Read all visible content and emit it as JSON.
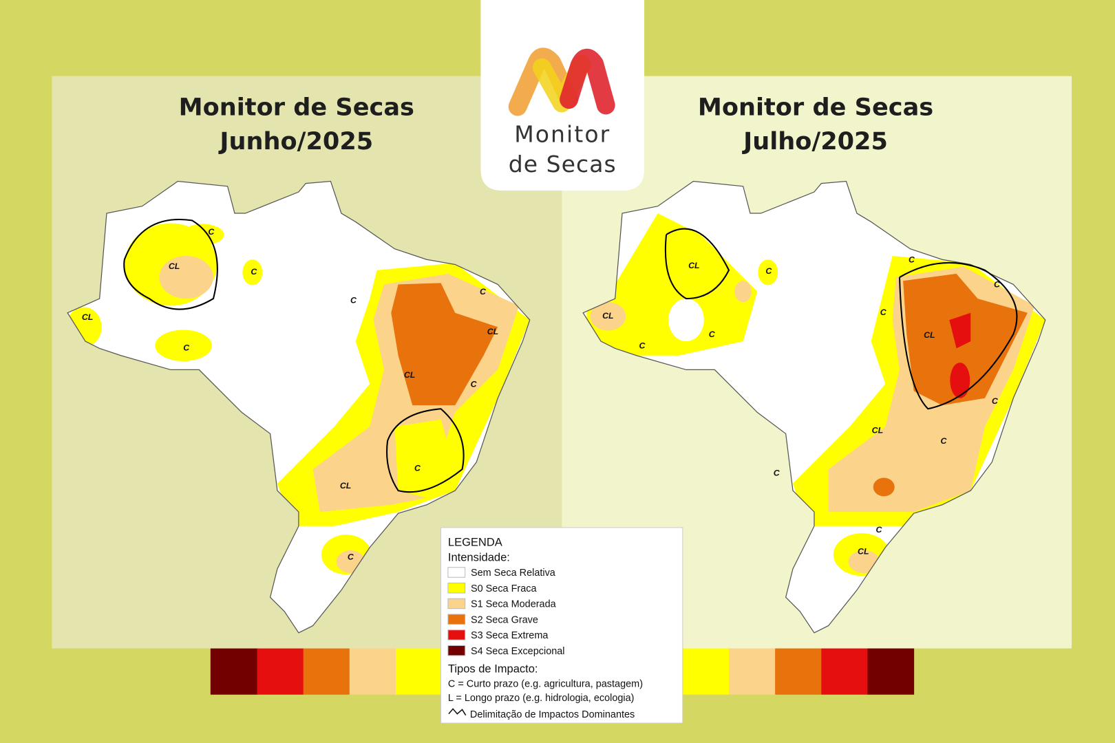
{
  "logo": {
    "line1": "Monitor",
    "line2": "de Secas"
  },
  "panels": [
    {
      "title_line1": "Monitor de Secas",
      "title_line2": "Junho/2025",
      "labels": [
        "CL",
        "C",
        "C",
        "CL",
        "C",
        "C",
        "C",
        "CL",
        "CL",
        "C",
        "C",
        "CL",
        "C"
      ]
    },
    {
      "title_line1": "Monitor de Secas",
      "title_line2": "Julho/2025",
      "labels": [
        "CL",
        "C",
        "CL",
        "C",
        "C",
        "C",
        "C",
        "C",
        "CL",
        "C",
        "CL",
        "C",
        "C",
        "C",
        "CL"
      ]
    }
  ],
  "legend": {
    "title": "LEGENDA",
    "intensity_title": "Intensidade:",
    "items": [
      {
        "label": "Sem Seca Relativa",
        "color": "#ffffff"
      },
      {
        "label": "S0 Seca Fraca",
        "color": "#ffff00"
      },
      {
        "label": "S1 Seca Moderada",
        "color": "#fcd38b"
      },
      {
        "label": "S2 Seca Grave",
        "color": "#e8730c"
      },
      {
        "label": "S3 Seca Extrema",
        "color": "#e60f0f"
      },
      {
        "label": "S4 Seca Excepcional",
        "color": "#730000"
      }
    ],
    "impact_title": "Tipos de Impacto:",
    "impact_items": [
      "C = Curto prazo (e.g. agricultura, pastagem)",
      "L = Longo prazo (e.g. hidrologia, ecologia)",
      "Delimitação de Impactos Dominantes"
    ]
  }
}
